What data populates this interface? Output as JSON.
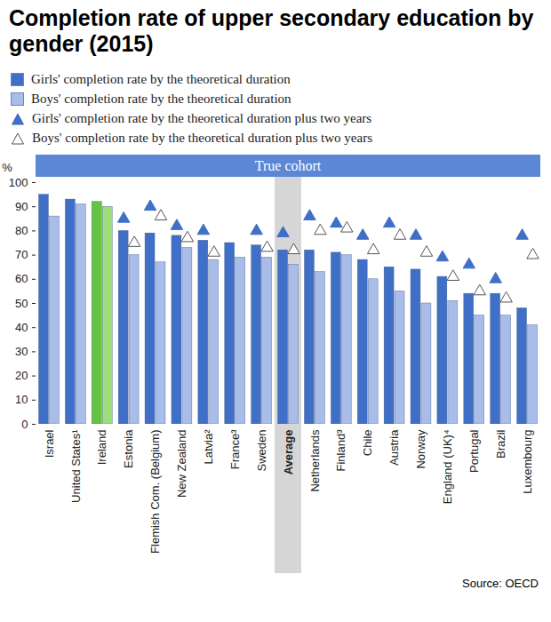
{
  "chart_data": {
    "type": "bar",
    "title": "Completion rate of upper secondary education by gender (2015)",
    "annotation": "True cohort",
    "ylabel": "%",
    "source": "Source: OECD",
    "highlight": "Average",
    "categories": [
      "Israel",
      "United States¹",
      "Ireland",
      "Estonia",
      "Flemish Com. (Belgium)",
      "New Zealand",
      "Latvia²",
      "France³",
      "Sweden",
      "Average",
      "Netherlands",
      "Finland³",
      "Chile",
      "Austria",
      "Norway",
      "England (UK)⁴",
      "Portugal",
      "Brazil",
      "Luxembourg"
    ],
    "series": [
      {
        "name": "Girls' completion rate by the theoretical duration",
        "type": "bar",
        "color": "#3f6fc6",
        "colors": [
          "#3f6fc6",
          "#3f6fc6",
          "#62c43f",
          "#3f6fc6",
          "#3f6fc6",
          "#3f6fc6",
          "#3f6fc6",
          "#3f6fc6",
          "#3f6fc6",
          "#3f6fc6",
          "#3f6fc6",
          "#3f6fc6",
          "#3f6fc6",
          "#3f6fc6",
          "#3f6fc6",
          "#3f6fc6",
          "#3f6fc6",
          "#3f6fc6",
          "#3f6fc6"
        ],
        "values": [
          95,
          93,
          92,
          80,
          79,
          78,
          76,
          75,
          74,
          72,
          72,
          71,
          68,
          65,
          64,
          61,
          54,
          54,
          48
        ]
      },
      {
        "name": "Boys' completion rate by the theoretical duration",
        "type": "bar",
        "color": "#a9bde9",
        "colors": [
          "#a9bde9",
          "#a9bde9",
          "#9fdc7d",
          "#a9bde9",
          "#a9bde9",
          "#a9bde9",
          "#a9bde9",
          "#a9bde9",
          "#a9bde9",
          "#a9bde9",
          "#a9bde9",
          "#a9bde9",
          "#a9bde9",
          "#a9bde9",
          "#a9bde9",
          "#a9bde9",
          "#a9bde9",
          "#a9bde9",
          "#a9bde9"
        ],
        "values": [
          86,
          91,
          90,
          70,
          67,
          73,
          68,
          69,
          69,
          66,
          63,
          70,
          60,
          55,
          50,
          51,
          45,
          45,
          41
        ]
      },
      {
        "name": "Girls' completion rate by the theoretical duration plus two years",
        "type": "scatter",
        "marker": "triangle",
        "color": "#3f6fc6",
        "values": [
          null,
          null,
          null,
          85,
          90,
          82,
          80,
          null,
          80,
          79,
          86,
          83,
          78,
          83,
          78,
          69,
          66,
          60,
          78
        ]
      },
      {
        "name": "Boys' completion rate by the theoretical duration plus two years",
        "type": "scatter",
        "marker": "triangle",
        "color": "#ffffff",
        "values": [
          null,
          null,
          null,
          75,
          86,
          77,
          71,
          null,
          73,
          72,
          80,
          81,
          72,
          78,
          71,
          61,
          55,
          52,
          70
        ]
      }
    ],
    "ylim": [
      0,
      100
    ],
    "yticks": [
      0,
      10,
      20,
      30,
      40,
      50,
      60,
      70,
      80,
      90,
      100
    ],
    "grid": false,
    "legend": "top"
  }
}
